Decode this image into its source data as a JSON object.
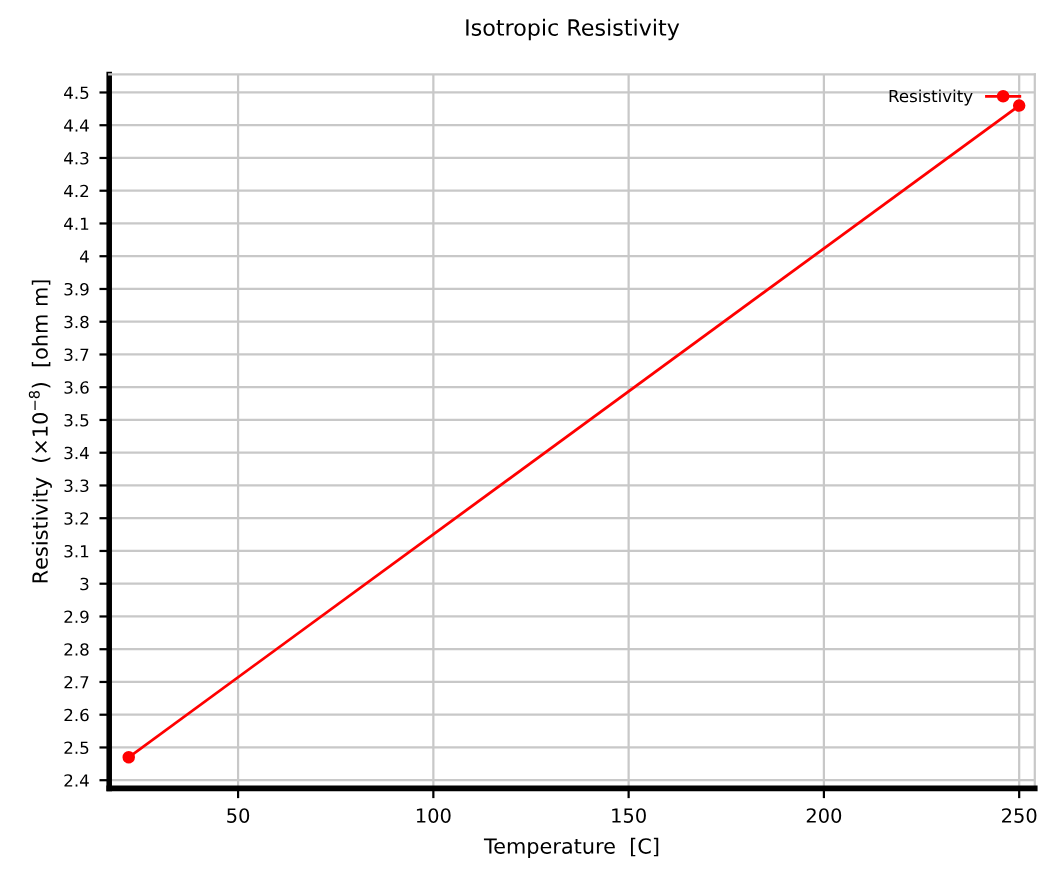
{
  "chart_data": {
    "type": "line",
    "title": "Isotropic Resistivity",
    "xlabel": "Temperature  [C]",
    "ylabel": "Resistivity  (×10$^{−8}$)  [ohm m]",
    "x": [
      22,
      250
    ],
    "series": [
      {
        "name": "Resistivity",
        "color": "#ff0000",
        "values": [
          2.47,
          4.46
        ]
      }
    ],
    "xlim": [
      17,
      254
    ],
    "xticks": [
      50,
      100,
      150,
      200,
      250
    ],
    "ylim": [
      2.375,
      4.555
    ],
    "yticks": [
      2.4,
      2.5,
      2.6,
      2.7,
      2.8,
      2.9,
      3,
      3.1,
      3.2,
      3.3,
      3.4,
      3.5,
      3.6,
      3.7,
      3.8,
      3.9,
      4,
      4.1,
      4.2,
      4.3,
      4.4,
      4.5
    ],
    "grid": true,
    "legend": "top right",
    "marker": "circle",
    "line_style": "solid"
  }
}
